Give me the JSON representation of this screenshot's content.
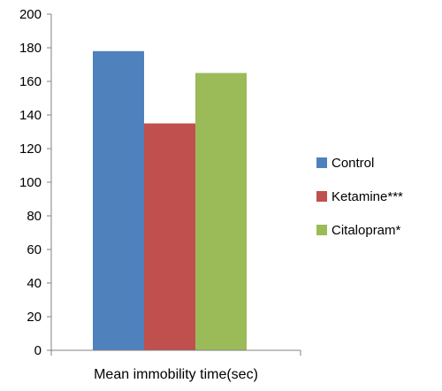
{
  "chart_data": {
    "type": "bar",
    "categories": [
      "Mean immobility time(sec)"
    ],
    "series": [
      {
        "name": "Control",
        "values": [
          178
        ],
        "color": "#4F81BD"
      },
      {
        "name": "Ketamine***",
        "values": [
          135
        ],
        "color": "#C0504D"
      },
      {
        "name": "Citalopram*",
        "values": [
          165
        ],
        "color": "#9BBB59"
      }
    ],
    "ylim": [
      0,
      200
    ],
    "yticks": [
      0,
      20,
      40,
      60,
      80,
      100,
      120,
      140,
      160,
      180,
      200
    ],
    "title": "",
    "xlabel": "",
    "ylabel": "",
    "grid": false,
    "legend": "right"
  }
}
